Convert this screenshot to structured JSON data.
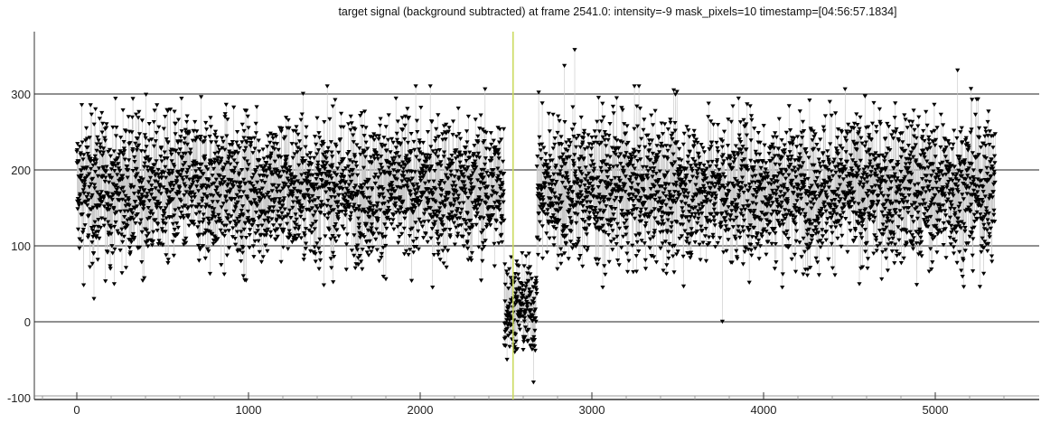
{
  "chart_data": {
    "type": "scatter",
    "title": "target signal (background subtracted) at frame 2541.0: intensity=-9 mask_pixels=10 timestamp=[04:56:57.1834]",
    "xlabel": "",
    "ylabel": "",
    "xlim": [
      -300,
      5600
    ],
    "ylim": [
      -100,
      380
    ],
    "x_ticks": [
      "0",
      "1000",
      "2000",
      "3000",
      "4000",
      "5000"
    ],
    "y_ticks": [
      "-100",
      "0",
      "100",
      "200",
      "300"
    ],
    "grid": "horizontal at y-ticks",
    "marker": "downward triangle",
    "marker_color": "#000000",
    "line_color": "#c8c8c8",
    "cursor": {
      "frame": 2541.0,
      "color": "#c8d85a"
    },
    "segments": [
      {
        "frames": [
          0,
          2490
        ],
        "typical_range": [
          60,
          300
        ],
        "center": 175
      },
      {
        "frames": [
          2490,
          2680
        ],
        "typical_range": [
          -60,
          100
        ],
        "center": 20
      },
      {
        "frames": [
          2680,
          5350
        ],
        "typical_range": [
          60,
          300
        ],
        "center": 175
      }
    ],
    "notable_points": [
      {
        "x": 2900,
        "y": 358
      },
      {
        "x": 2840,
        "y": 337
      },
      {
        "x": 5130,
        "y": 331
      },
      {
        "x": 3760,
        "y": 0
      },
      {
        "x": 2660,
        "y": -80
      },
      {
        "x": 100,
        "y": 30
      }
    ]
  }
}
